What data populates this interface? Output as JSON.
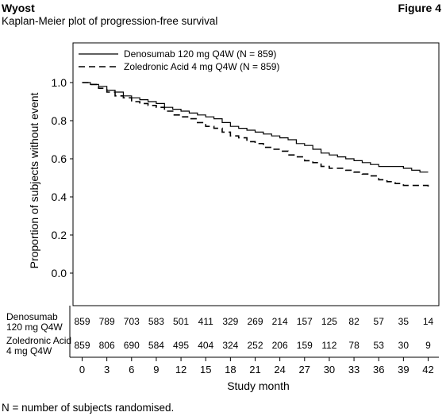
{
  "header": {
    "author": "Wyost",
    "figure_label": "Figure 4",
    "subtitle": "Kaplan-Meier plot of progression-free survival"
  },
  "footnote": "N = number of subjects randomised.",
  "chart_data": {
    "type": "line",
    "title": "Kaplan-Meier plot of progression-free survival",
    "xlabel": "Study month",
    "ylabel": "Proportion of subjects without event",
    "xlim": [
      0,
      43
    ],
    "ylim": [
      0,
      1.05
    ],
    "xticks": [
      0,
      3,
      6,
      9,
      12,
      15,
      18,
      21,
      24,
      27,
      30,
      33,
      36,
      39,
      42
    ],
    "yticks": [
      0.0,
      0.2,
      0.4,
      0.6,
      0.8,
      1.0
    ],
    "ytick_labels": [
      "0.0",
      "0.2",
      "0.4",
      "0.6",
      "0.8",
      "1.0"
    ],
    "grid": false,
    "legend_position": "top-left",
    "series": [
      {
        "name": "Denosumab 120 mg Q4W (N = 859)",
        "style": "solid",
        "x": [
          0,
          1,
          2,
          3,
          4,
          5,
          6,
          7,
          8,
          9,
          10,
          11,
          12,
          13,
          14,
          15,
          16,
          17,
          18,
          19,
          20,
          21,
          22,
          23,
          24,
          25,
          26,
          27,
          28,
          29,
          30,
          31,
          32,
          33,
          34,
          35,
          36,
          37,
          38,
          39,
          40,
          41,
          42
        ],
        "y": [
          1.0,
          0.99,
          0.98,
          0.96,
          0.95,
          0.93,
          0.92,
          0.91,
          0.9,
          0.89,
          0.87,
          0.86,
          0.85,
          0.84,
          0.83,
          0.82,
          0.81,
          0.79,
          0.77,
          0.76,
          0.75,
          0.74,
          0.73,
          0.72,
          0.71,
          0.7,
          0.68,
          0.67,
          0.65,
          0.63,
          0.62,
          0.61,
          0.6,
          0.59,
          0.58,
          0.57,
          0.56,
          0.56,
          0.56,
          0.55,
          0.54,
          0.53,
          0.53
        ]
      },
      {
        "name": "Zoledronic Acid 4 mg Q4W (N = 859)",
        "style": "dashed",
        "x": [
          0,
          1,
          2,
          3,
          4,
          5,
          6,
          7,
          8,
          9,
          10,
          11,
          12,
          13,
          14,
          15,
          16,
          17,
          18,
          19,
          20,
          21,
          22,
          23,
          24,
          25,
          26,
          27,
          28,
          29,
          30,
          31,
          32,
          33,
          34,
          35,
          36,
          37,
          38,
          39,
          40,
          41,
          42
        ],
        "y": [
          1.0,
          0.99,
          0.97,
          0.95,
          0.93,
          0.92,
          0.9,
          0.89,
          0.88,
          0.87,
          0.85,
          0.83,
          0.82,
          0.81,
          0.79,
          0.77,
          0.76,
          0.74,
          0.72,
          0.71,
          0.69,
          0.68,
          0.66,
          0.65,
          0.64,
          0.62,
          0.61,
          0.59,
          0.58,
          0.56,
          0.55,
          0.55,
          0.54,
          0.53,
          0.52,
          0.51,
          0.49,
          0.48,
          0.47,
          0.46,
          0.46,
          0.46,
          0.45
        ]
      }
    ],
    "at_risk": {
      "x": [
        0,
        3,
        6,
        9,
        12,
        15,
        18,
        21,
        24,
        27,
        30,
        33,
        36,
        39,
        42
      ],
      "rows": [
        {
          "label_line1": "Denosumab",
          "label_line2": "120 mg Q4W",
          "values": [
            859,
            789,
            703,
            583,
            501,
            411,
            329,
            269,
            214,
            157,
            125,
            82,
            57,
            35,
            14
          ]
        },
        {
          "label_line1": "Zoledronic Acid",
          "label_line2": "4 mg Q4W",
          "values": [
            859,
            806,
            690,
            584,
            495,
            404,
            324,
            252,
            206,
            159,
            112,
            78,
            53,
            30,
            9
          ]
        }
      ]
    }
  }
}
